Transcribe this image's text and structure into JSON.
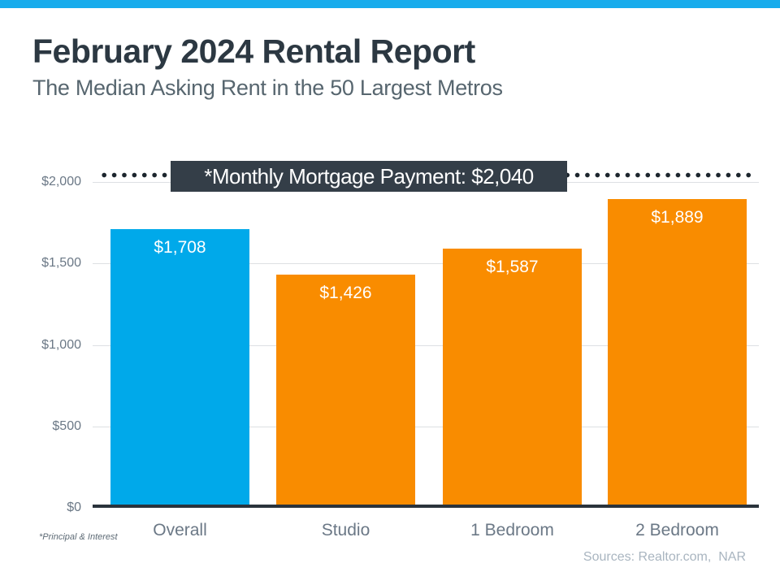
{
  "accent": {
    "top_bar_color": "#18ACEC"
  },
  "header": {
    "title": "February 2024 Rental Report",
    "subtitle": "The Median Asking Rent in the 50 Largest Metros"
  },
  "chart_data": {
    "type": "bar",
    "title": "February 2024 Rental Report",
    "subtitle": "The Median Asking Rent in the 50 Largest Metros",
    "categories": [
      "Overall",
      "Studio",
      "1 Bedroom",
      "2 Bedroom"
    ],
    "values": [
      1708,
      1426,
      1587,
      1889
    ],
    "value_labels": [
      "$1,708",
      "$1,426",
      "$1,587",
      "$1,889"
    ],
    "bar_colors": [
      "#00A9EA",
      "#F98C00",
      "#F98C00",
      "#F98C00"
    ],
    "ylim": [
      0,
      2000
    ],
    "yticks": [
      {
        "value": 0,
        "label": "$0"
      },
      {
        "value": 500,
        "label": "$500"
      },
      {
        "value": 1000,
        "label": "$1,000"
      },
      {
        "value": 1500,
        "label": "$1,500"
      },
      {
        "value": 2000,
        "label": "$2,000"
      }
    ],
    "grid": true,
    "legend": "none",
    "reference_line": {
      "value": 2040,
      "style": "dotted",
      "label": "*Monthly Mortgage Payment: $2,040",
      "label_bg": "#343E48",
      "label_color": "#FFFFFF",
      "dot_color": "#1C252D"
    }
  },
  "footnote": "*Principal & Interest",
  "sources": "Sources: Realtor.com,  NAR"
}
